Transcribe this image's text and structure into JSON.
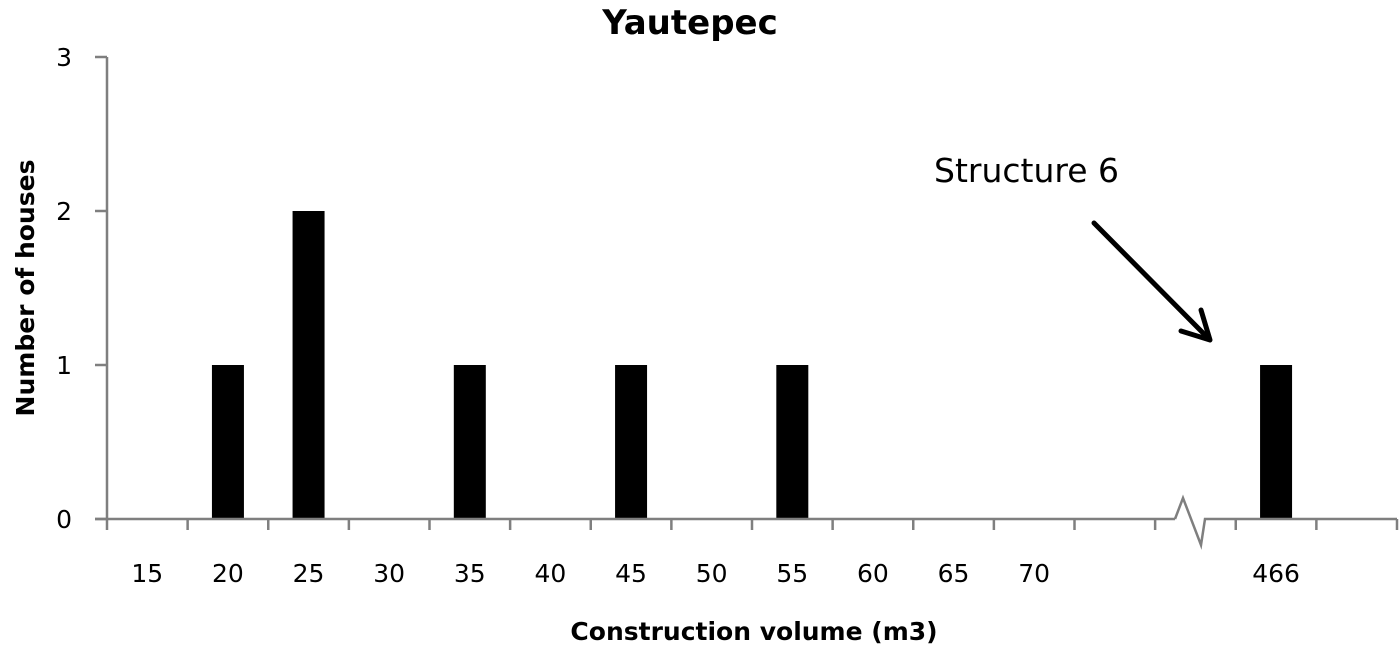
{
  "chart_data": {
    "type": "bar",
    "title": "Yautepec",
    "xlabel": "Construction volume (m3)",
    "ylabel": "Number of houses",
    "categories": [
      "15",
      "20",
      "25",
      "30",
      "35",
      "40",
      "45",
      "50",
      "55",
      "60",
      "65",
      "70",
      "",
      "",
      "466",
      ""
    ],
    "values": [
      0,
      1,
      2,
      0,
      1,
      0,
      1,
      0,
      1,
      0,
      0,
      0,
      0,
      0,
      1,
      0
    ],
    "yticks": [
      "0",
      "1",
      "2",
      "3"
    ],
    "ylim": [
      0,
      3
    ],
    "grid": false,
    "legend": null,
    "axis_break": {
      "between": "70",
      "and": "466"
    },
    "bar_color": "#000000",
    "axis_color": "#7f7f7f",
    "annotations": [
      {
        "text": "Structure 6",
        "points_to": "466",
        "type": "arrow"
      }
    ]
  }
}
